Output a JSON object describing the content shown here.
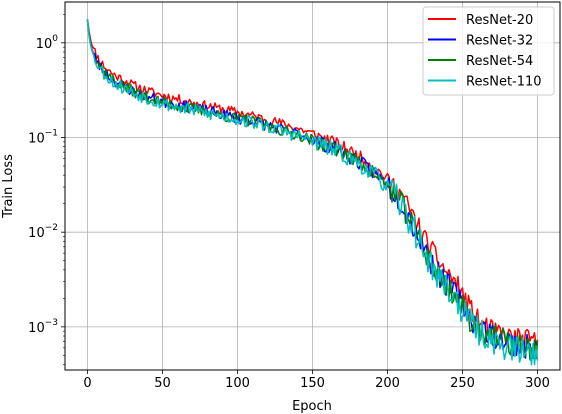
{
  "chart_data": {
    "type": "line",
    "xlabel": "Epoch",
    "ylabel": "Train Loss",
    "xscale": "linear",
    "yscale": "log",
    "xlim": [
      -15,
      315
    ],
    "ylim": [
      0.00035,
      2.7
    ],
    "xticks": [
      0,
      50,
      100,
      150,
      200,
      250,
      300
    ],
    "xtick_labels": [
      "0",
      "50",
      "100",
      "150",
      "200",
      "250",
      "300"
    ],
    "yticks": [
      0.001,
      0.01,
      0.1,
      1
    ],
    "ytick_labels": [
      {
        "base": "10",
        "exp": "−3"
      },
      {
        "base": "10",
        "exp": "−2"
      },
      {
        "base": "10",
        "exp": "−1"
      },
      {
        "base": "10",
        "exp": "0"
      }
    ],
    "grid": true,
    "legend_position": "upper right",
    "series": [
      {
        "name": "ResNet-20",
        "color": "#ff0000",
        "noise": 0.05,
        "seed": 11,
        "x": [
          0,
          1,
          2,
          3,
          5,
          8,
          12,
          16,
          20,
          25,
          30,
          40,
          50,
          60,
          70,
          80,
          90,
          100,
          110,
          120,
          130,
          140,
          150,
          160,
          170,
          180,
          190,
          200,
          205,
          210,
          215,
          220,
          225,
          230,
          235,
          240,
          245,
          250,
          255,
          260,
          265,
          270,
          275,
          280,
          285,
          290,
          295,
          300
        ],
        "y": [
          1.8,
          1.35,
          1.1,
          0.95,
          0.8,
          0.65,
          0.55,
          0.48,
          0.44,
          0.4,
          0.36,
          0.31,
          0.28,
          0.255,
          0.235,
          0.215,
          0.2,
          0.185,
          0.17,
          0.155,
          0.14,
          0.125,
          0.11,
          0.095,
          0.08,
          0.065,
          0.05,
          0.036,
          0.03,
          0.024,
          0.017,
          0.012,
          0.0085,
          0.0062,
          0.0047,
          0.0037,
          0.003,
          0.0022,
          0.0016,
          0.0012,
          0.00105,
          0.0009,
          0.00085,
          0.0008,
          0.00078,
          0.00075,
          0.00072,
          0.0007
        ]
      },
      {
        "name": "ResNet-32",
        "color": "#0000ff",
        "noise": 0.06,
        "seed": 23,
        "x": [
          0,
          1,
          2,
          3,
          5,
          8,
          12,
          16,
          20,
          25,
          30,
          40,
          50,
          60,
          70,
          80,
          90,
          100,
          110,
          120,
          130,
          140,
          150,
          160,
          170,
          180,
          190,
          200,
          205,
          210,
          215,
          220,
          225,
          230,
          235,
          240,
          245,
          250,
          255,
          260,
          265,
          270,
          275,
          280,
          285,
          290,
          295,
          300
        ],
        "y": [
          1.75,
          1.25,
          1.0,
          0.85,
          0.7,
          0.57,
          0.48,
          0.42,
          0.38,
          0.34,
          0.31,
          0.27,
          0.24,
          0.22,
          0.205,
          0.19,
          0.175,
          0.16,
          0.15,
          0.135,
          0.12,
          0.11,
          0.095,
          0.082,
          0.07,
          0.056,
          0.044,
          0.032,
          0.026,
          0.02,
          0.014,
          0.0095,
          0.0065,
          0.0045,
          0.0034,
          0.0028,
          0.0022,
          0.0017,
          0.0013,
          0.001,
          0.0009,
          0.00082,
          0.00075,
          0.0007,
          0.00066,
          0.00063,
          0.0006,
          0.00059
        ]
      },
      {
        "name": "ResNet-54",
        "color": "#008000",
        "noise": 0.06,
        "seed": 37,
        "x": [
          0,
          1,
          2,
          3,
          5,
          8,
          12,
          16,
          20,
          25,
          30,
          40,
          50,
          60,
          70,
          80,
          90,
          100,
          110,
          120,
          130,
          140,
          150,
          160,
          170,
          180,
          190,
          200,
          205,
          210,
          215,
          220,
          225,
          230,
          235,
          240,
          245,
          250,
          255,
          260,
          265,
          270,
          275,
          280,
          285,
          290,
          295,
          300
        ],
        "y": [
          1.75,
          1.25,
          1.0,
          0.85,
          0.7,
          0.57,
          0.48,
          0.42,
          0.38,
          0.34,
          0.31,
          0.265,
          0.235,
          0.215,
          0.2,
          0.185,
          0.17,
          0.158,
          0.148,
          0.133,
          0.118,
          0.108,
          0.094,
          0.081,
          0.069,
          0.055,
          0.043,
          0.031,
          0.025,
          0.019,
          0.0135,
          0.0092,
          0.0063,
          0.0044,
          0.0033,
          0.0027,
          0.0021,
          0.0016,
          0.0012,
          0.00098,
          0.00088,
          0.0008,
          0.00073,
          0.00068,
          0.00064,
          0.00061,
          0.00059,
          0.00058
        ]
      },
      {
        "name": "ResNet-110",
        "color": "#00bfbf",
        "noise": 0.07,
        "seed": 53,
        "x": [
          0,
          1,
          2,
          3,
          5,
          8,
          12,
          16,
          20,
          25,
          30,
          40,
          50,
          60,
          70,
          80,
          90,
          100,
          110,
          120,
          130,
          140,
          150,
          160,
          170,
          180,
          190,
          200,
          205,
          210,
          215,
          220,
          225,
          230,
          235,
          240,
          245,
          250,
          255,
          260,
          265,
          270,
          275,
          280,
          285,
          290,
          295,
          300
        ],
        "y": [
          1.8,
          1.22,
          0.98,
          0.83,
          0.68,
          0.55,
          0.46,
          0.4,
          0.36,
          0.33,
          0.3,
          0.26,
          0.23,
          0.21,
          0.195,
          0.18,
          0.168,
          0.155,
          0.145,
          0.13,
          0.116,
          0.105,
          0.092,
          0.079,
          0.067,
          0.054,
          0.042,
          0.03,
          0.024,
          0.018,
          0.013,
          0.009,
          0.006,
          0.0042,
          0.0032,
          0.0026,
          0.002,
          0.0015,
          0.00115,
          0.00092,
          0.0008,
          0.00072,
          0.00066,
          0.00062,
          0.00058,
          0.00056,
          0.00055,
          0.00054
        ]
      }
    ]
  }
}
